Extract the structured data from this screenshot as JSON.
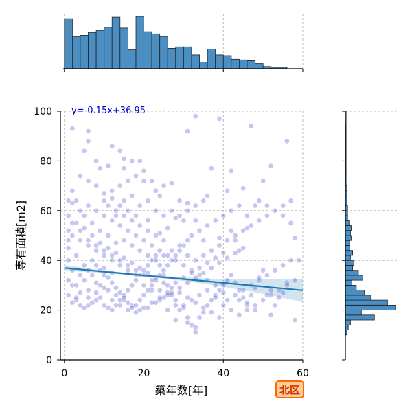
{
  "chart_data": {
    "type": "scatter",
    "title": "",
    "xlabel": "築年数[年]",
    "ylabel": "専有面積[m2]",
    "xlim": [
      -1,
      60
    ],
    "ylim": [
      0,
      100
    ],
    "x_ticks": [
      0,
      20,
      40,
      60
    ],
    "y_ticks": [
      0,
      20,
      40,
      60,
      80,
      100
    ],
    "grid": true,
    "regression": {
      "slope": -0.15,
      "intercept": 36.95,
      "label": "y=-0.15x+36.95"
    },
    "region_label": "北区",
    "colors": {
      "points": "#3333cc",
      "regression": "#1f77b4",
      "hist": "#4a8ec2",
      "badge_bg": "#ffcc99",
      "badge_border": "#ff6600",
      "badge_text": "#cc3300",
      "equation": "#0000cd"
    },
    "points": [
      [
        1,
        64
      ],
      [
        2,
        63
      ],
      [
        3,
        64
      ],
      [
        2,
        93
      ],
      [
        6,
        92
      ],
      [
        6,
        88
      ],
      [
        5,
        84
      ],
      [
        12,
        86
      ],
      [
        14,
        84
      ],
      [
        15,
        81
      ],
      [
        17,
        80
      ],
      [
        19,
        80
      ],
      [
        8,
        80
      ],
      [
        11,
        78
      ],
      [
        9,
        77
      ],
      [
        15,
        77
      ],
      [
        20,
        72
      ],
      [
        22,
        72
      ],
      [
        25,
        70
      ],
      [
        23,
        68
      ],
      [
        27,
        71
      ],
      [
        24,
        66
      ],
      [
        29,
        64
      ],
      [
        31,
        63
      ],
      [
        35,
        64
      ],
      [
        36,
        66
      ],
      [
        41,
        68
      ],
      [
        45,
        69
      ],
      [
        37,
        77
      ],
      [
        42,
        76
      ],
      [
        33,
        98
      ],
      [
        39,
        97
      ],
      [
        47,
        94
      ],
      [
        31,
        92
      ],
      [
        56,
        88
      ],
      [
        52,
        78
      ],
      [
        50,
        72
      ],
      [
        49,
        64
      ],
      [
        48,
        62
      ],
      [
        51,
        62
      ],
      [
        55,
        58
      ],
      [
        57,
        55
      ],
      [
        58,
        49
      ],
      [
        46,
        53
      ],
      [
        43,
        48
      ],
      [
        44,
        44
      ],
      [
        42,
        52
      ],
      [
        39,
        49
      ],
      [
        35,
        48
      ],
      [
        33,
        56
      ],
      [
        30,
        56
      ],
      [
        28,
        57
      ],
      [
        26,
        53
      ],
      [
        24,
        51
      ],
      [
        21,
        56
      ],
      [
        18,
        58
      ],
      [
        16,
        60
      ],
      [
        14,
        62
      ],
      [
        12,
        65
      ],
      [
        10,
        67
      ],
      [
        8,
        70
      ],
      [
        6,
        72
      ],
      [
        4,
        74
      ],
      [
        2,
        68
      ],
      [
        1,
        58
      ],
      [
        3,
        55
      ],
      [
        5,
        53
      ],
      [
        7,
        50
      ],
      [
        9,
        47
      ],
      [
        11,
        45
      ],
      [
        13,
        43
      ],
      [
        15,
        41
      ],
      [
        17,
        39
      ],
      [
        19,
        37
      ],
      [
        21,
        35
      ],
      [
        23,
        33
      ],
      [
        25,
        31
      ],
      [
        27,
        29
      ],
      [
        29,
        27
      ],
      [
        31,
        25
      ],
      [
        33,
        23
      ],
      [
        35,
        21
      ],
      [
        37,
        19
      ],
      [
        39,
        17
      ],
      [
        41,
        24
      ],
      [
        43,
        26
      ],
      [
        45,
        28
      ],
      [
        47,
        30
      ],
      [
        49,
        32
      ],
      [
        51,
        34
      ],
      [
        53,
        36
      ],
      [
        55,
        38
      ],
      [
        57,
        40
      ],
      [
        59,
        40
      ],
      [
        58,
        16
      ],
      [
        52,
        18
      ],
      [
        48,
        20
      ],
      [
        46,
        22
      ],
      [
        44,
        24
      ],
      [
        40,
        27
      ],
      [
        38,
        30
      ],
      [
        36,
        32
      ],
      [
        34,
        34
      ],
      [
        32,
        36
      ],
      [
        30,
        38
      ],
      [
        28,
        40
      ],
      [
        26,
        42
      ],
      [
        24,
        44
      ],
      [
        22,
        46
      ],
      [
        20,
        48
      ],
      [
        18,
        50
      ],
      [
        16,
        52
      ],
      [
        14,
        54
      ],
      [
        12,
        56
      ],
      [
        10,
        58
      ],
      [
        8,
        60
      ],
      [
        6,
        62
      ],
      [
        4,
        60
      ],
      [
        2,
        50
      ],
      [
        1,
        45
      ],
      [
        1,
        40
      ],
      [
        2,
        36
      ],
      [
        1,
        32
      ],
      [
        2,
        30
      ],
      [
        1,
        26
      ],
      [
        3,
        24
      ],
      [
        4,
        22
      ],
      [
        5,
        21
      ],
      [
        6,
        22
      ],
      [
        7,
        23
      ],
      [
        8,
        24
      ],
      [
        9,
        25
      ],
      [
        10,
        22
      ],
      [
        11,
        21
      ],
      [
        12,
        20
      ],
      [
        13,
        22
      ],
      [
        14,
        24
      ],
      [
        15,
        26
      ],
      [
        16,
        28
      ],
      [
        17,
        30
      ],
      [
        18,
        32
      ],
      [
        19,
        34
      ],
      [
        20,
        36
      ],
      [
        21,
        38
      ],
      [
        22,
        40
      ],
      [
        23,
        42
      ],
      [
        24,
        38
      ],
      [
        25,
        34
      ],
      [
        26,
        30
      ],
      [
        27,
        26
      ],
      [
        28,
        22
      ],
      [
        29,
        20
      ],
      [
        30,
        21
      ],
      [
        31,
        15
      ],
      [
        32,
        14
      ],
      [
        33,
        13
      ],
      [
        34,
        17
      ],
      [
        35,
        19
      ],
      [
        36,
        22
      ],
      [
        37,
        24
      ],
      [
        38,
        26
      ],
      [
        39,
        28
      ],
      [
        40,
        30
      ],
      [
        41,
        32
      ],
      [
        42,
        34
      ],
      [
        43,
        31
      ],
      [
        44,
        28
      ],
      [
        45,
        25
      ],
      [
        46,
        23
      ],
      [
        47,
        26
      ],
      [
        48,
        29
      ],
      [
        49,
        33
      ],
      [
        50,
        36
      ],
      [
        51,
        26
      ],
      [
        52,
        28
      ],
      [
        53,
        22
      ],
      [
        54,
        25
      ],
      [
        55,
        27
      ],
      [
        56,
        31
      ],
      [
        33,
        11
      ],
      [
        31,
        17
      ],
      [
        28,
        16
      ],
      [
        26,
        20
      ],
      [
        24,
        24
      ],
      [
        22,
        28
      ],
      [
        20,
        30
      ],
      [
        18,
        34
      ],
      [
        16,
        36
      ],
      [
        14,
        38
      ],
      [
        12,
        40
      ],
      [
        10,
        42
      ],
      [
        8,
        44
      ],
      [
        6,
        46
      ],
      [
        4,
        48
      ],
      [
        3,
        42
      ],
      [
        5,
        38
      ],
      [
        7,
        34
      ],
      [
        9,
        30
      ],
      [
        11,
        28
      ],
      [
        13,
        26
      ],
      [
        15,
        24
      ],
      [
        17,
        22
      ],
      [
        19,
        20
      ],
      [
        21,
        21
      ],
      [
        23,
        23
      ],
      [
        25,
        25
      ],
      [
        27,
        27
      ],
      [
        29,
        29
      ],
      [
        31,
        31
      ],
      [
        33,
        33
      ],
      [
        35,
        35
      ],
      [
        37,
        37
      ],
      [
        39,
        39
      ],
      [
        41,
        41
      ],
      [
        43,
        43
      ],
      [
        45,
        45
      ],
      [
        3,
        30
      ],
      [
        4,
        34
      ],
      [
        5,
        32
      ],
      [
        6,
        36
      ],
      [
        7,
        40
      ],
      [
        8,
        38
      ],
      [
        9,
        36
      ],
      [
        10,
        34
      ],
      [
        11,
        33
      ],
      [
        12,
        31
      ],
      [
        13,
        29
      ],
      [
        14,
        27
      ],
      [
        15,
        25
      ],
      [
        16,
        23
      ],
      [
        17,
        21
      ],
      [
        18,
        22
      ],
      [
        19,
        24
      ],
      [
        20,
        26
      ],
      [
        21,
        28
      ],
      [
        22,
        30
      ],
      [
        23,
        32
      ],
      [
        24,
        34
      ],
      [
        25,
        36
      ],
      [
        26,
        38
      ],
      [
        27,
        40
      ],
      [
        28,
        42
      ],
      [
        29,
        44
      ],
      [
        30,
        46
      ],
      [
        31,
        48
      ],
      [
        32,
        50
      ],
      [
        34,
        52
      ],
      [
        36,
        54
      ],
      [
        38,
        56
      ],
      [
        40,
        58
      ],
      [
        42,
        60
      ],
      [
        44,
        62
      ],
      [
        46,
        58
      ],
      [
        13,
        47
      ],
      [
        11,
        50
      ],
      [
        9,
        52
      ],
      [
        7,
        55
      ],
      [
        5,
        58
      ],
      [
        13,
        60
      ],
      [
        15,
        58
      ],
      [
        17,
        56
      ],
      [
        19,
        54
      ],
      [
        21,
        52
      ],
      [
        23,
        50
      ],
      [
        25,
        48
      ],
      [
        12,
        35
      ],
      [
        10,
        37
      ],
      [
        8,
        31
      ],
      [
        6,
        28
      ],
      [
        4,
        27
      ],
      [
        3,
        25
      ],
      [
        2,
        23
      ],
      [
        6,
        25
      ],
      [
        8,
        27
      ],
      [
        10,
        29
      ],
      [
        12,
        24
      ],
      [
        14,
        22
      ],
      [
        16,
        20
      ],
      [
        18,
        19
      ],
      [
        20,
        21
      ],
      [
        22,
        23
      ],
      [
        24,
        25
      ],
      [
        26,
        27
      ],
      [
        28,
        31
      ],
      [
        30,
        33
      ],
      [
        32,
        35
      ],
      [
        34,
        37
      ],
      [
        36,
        39
      ],
      [
        38,
        41
      ],
      [
        40,
        43
      ],
      [
        36,
        28
      ],
      [
        34,
        26
      ],
      [
        32,
        24
      ],
      [
        30,
        22
      ],
      [
        28,
        24
      ],
      [
        26,
        26
      ],
      [
        24,
        28
      ],
      [
        22,
        32
      ],
      [
        20,
        34
      ],
      [
        18,
        36
      ],
      [
        16,
        38
      ],
      [
        14,
        40
      ],
      [
        12,
        42
      ],
      [
        10,
        44
      ],
      [
        8,
        46
      ],
      [
        6,
        48
      ],
      [
        4,
        52
      ],
      [
        2,
        55
      ],
      [
        1,
        52
      ],
      [
        1,
        48
      ],
      [
        15,
        48
      ],
      [
        17,
        46
      ],
      [
        19,
        44
      ],
      [
        21,
        42
      ],
      [
        23,
        40
      ],
      [
        25,
        42
      ],
      [
        27,
        44
      ],
      [
        29,
        46
      ],
      [
        31,
        42
      ],
      [
        33,
        40
      ],
      [
        35,
        42
      ],
      [
        37,
        44
      ],
      [
        39,
        46
      ],
      [
        41,
        48
      ],
      [
        43,
        50
      ],
      [
        45,
        52
      ],
      [
        47,
        54
      ],
      [
        49,
        56
      ],
      [
        51,
        58
      ],
      [
        53,
        60
      ],
      [
        55,
        62
      ],
      [
        57,
        64
      ],
      [
        38,
        25
      ],
      [
        40,
        22
      ],
      [
        42,
        20
      ],
      [
        44,
        18
      ],
      [
        46,
        20
      ],
      [
        48,
        22
      ],
      [
        50,
        24
      ],
      [
        52,
        26
      ],
      [
        54,
        28
      ],
      [
        56,
        30
      ],
      [
        58,
        32
      ],
      [
        10,
        64
      ],
      [
        12,
        68
      ],
      [
        14,
        70
      ],
      [
        16,
        72
      ],
      [
        18,
        74
      ],
      [
        20,
        76
      ],
      [
        11,
        62
      ],
      [
        13,
        58
      ],
      [
        15,
        64
      ],
      [
        17,
        66
      ],
      [
        19,
        62
      ],
      [
        21,
        64
      ],
      [
        23,
        60
      ],
      [
        25,
        58
      ],
      [
        27,
        60
      ],
      [
        29,
        58
      ],
      [
        31,
        60
      ],
      [
        33,
        62
      ]
    ],
    "top_hist": {
      "bin_width": 2,
      "bin_start": 0,
      "counts": [
        69,
        44,
        46,
        50,
        53,
        57,
        71,
        56,
        26,
        72,
        51,
        48,
        44,
        28,
        30,
        30,
        19,
        9,
        27,
        19,
        18,
        13,
        12,
        11,
        7,
        3,
        2,
        2
      ]
    },
    "right_hist": {
      "bin_width": 2,
      "bin_start": 10,
      "counts": [
        2,
        4,
        7,
        40,
        22,
        69,
        58,
        35,
        26,
        15,
        9,
        24,
        18,
        10,
        12,
        7,
        10,
        6,
        6,
        8,
        7,
        8,
        5,
        3,
        3,
        3,
        2,
        2,
        2,
        2,
        1,
        1,
        1,
        1,
        1,
        1,
        1,
        1,
        1,
        1,
        1,
        1,
        1,
        1,
        1
      ]
    }
  }
}
